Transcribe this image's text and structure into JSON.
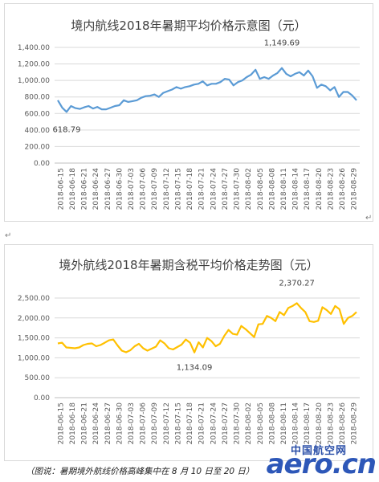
{
  "charts": [
    {
      "title": "境内航线2018年暑期平均价格示意图（元）",
      "type": "line",
      "color": "#5b9bd5",
      "ylim": [
        0,
        1400
      ],
      "yticks": [
        "0.00",
        "200.00",
        "400.00",
        "600.00",
        "800.00",
        "1,000.00",
        "1,200.00",
        "1,400.00"
      ],
      "annotations": {
        "min_label": "618.79",
        "max_label": "1,149.69"
      },
      "x_labels": [
        "2018-06-15",
        "2018-06-18",
        "2018-06-21",
        "2018-06-24",
        "2018-06-27",
        "2018-06-30",
        "2018-07-03",
        "2018-07-06",
        "2018-07-09",
        "2018-07-12",
        "2018-07-15",
        "2018-07-18",
        "2018-07-21",
        "2018-07-24",
        "2018-07-27",
        "2018-07-30",
        "2018-08-02",
        "2018-08-05",
        "2018-08-08",
        "2018-08-11",
        "2018-08-14",
        "2018-08-17",
        "2018-08-20",
        "2018-08-23",
        "2018-08-26",
        "2018-08-29"
      ],
      "values": [
        760,
        670,
        619,
        690,
        665,
        655,
        675,
        690,
        660,
        680,
        650,
        650,
        670,
        690,
        700,
        760,
        740,
        750,
        760,
        790,
        810,
        815,
        830,
        800,
        850,
        870,
        890,
        920,
        900,
        920,
        930,
        950,
        960,
        990,
        940,
        960,
        960,
        980,
        1020,
        1010,
        940,
        980,
        1000,
        1040,
        1070,
        1130,
        1020,
        1040,
        1020,
        1060,
        1090,
        1149.69,
        1080,
        1050,
        1080,
        1100,
        1060,
        1120,
        1050,
        910,
        950,
        930,
        880,
        920,
        800,
        860,
        860,
        820,
        760
      ]
    },
    {
      "title": "境外航线2018年暑期含税平均价格走势图（元）",
      "type": "line",
      "color": "#ffc000",
      "ylim": [
        0,
        2500
      ],
      "yticks": [
        "0.00",
        "500.00",
        "1,000.00",
        "1,500.00",
        "2,000.00",
        "2,500.00"
      ],
      "annotations": {
        "min_label": "1,134.09",
        "max_label": "2,370.27"
      },
      "x_labels": [
        "2018-06-15",
        "2018-06-18",
        "2018-06-21",
        "2018-06-24",
        "2018-06-27",
        "2018-06-30",
        "2018-07-03",
        "2018-07-06",
        "2018-07-09",
        "2018-07-12",
        "2018-07-15",
        "2018-07-18",
        "2018-07-21",
        "2018-07-24",
        "2018-07-27",
        "2018-07-30",
        "2018-08-02",
        "2018-08-05",
        "2018-08-08",
        "2018-08-11",
        "2018-08-14",
        "2018-08-17",
        "2018-08-20",
        "2018-08-23",
        "2018-08-26",
        "2018-08-29"
      ],
      "values": [
        1360,
        1380,
        1260,
        1250,
        1240,
        1260,
        1320,
        1350,
        1360,
        1290,
        1320,
        1380,
        1440,
        1460,
        1310,
        1180,
        1140,
        1190,
        1290,
        1350,
        1240,
        1180,
        1230,
        1280,
        1440,
        1360,
        1240,
        1210,
        1270,
        1330,
        1460,
        1380,
        1134.09,
        1390,
        1260,
        1500,
        1420,
        1290,
        1350,
        1550,
        1700,
        1600,
        1580,
        1800,
        1720,
        1620,
        1520,
        1840,
        1850,
        2050,
        2000,
        1920,
        2150,
        2070,
        2250,
        2300,
        2370.27,
        2250,
        2150,
        1920,
        1900,
        1930,
        2270,
        2200,
        2100,
        2300,
        2220,
        1850,
        2000,
        2050,
        2150
      ]
    }
  ],
  "caption": "（图说：暑期境外航线价格高峰集中在 8 月 10 日至 20 日）",
  "watermark": {
    "cn": "中国航空网",
    "en": "aero.cn"
  }
}
